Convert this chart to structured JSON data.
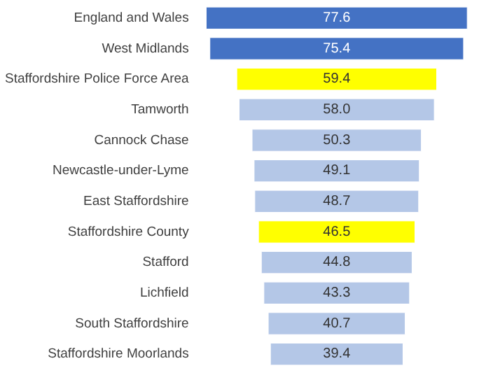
{
  "chart_data": {
    "type": "other",
    "categories": [
      "England and Wales",
      "West Midlands",
      "Staffordshire Police Force Area",
      "Tamworth",
      "Cannock Chase",
      "Newcastle-under-Lyme",
      "East Staffordshire",
      "Staffordshire County",
      "Stafford",
      "Lichfield",
      "South Staffordshire",
      "Staffordshire Moorlands"
    ],
    "values": [
      77.6,
      75.4,
      59.4,
      58.0,
      50.3,
      49.1,
      48.7,
      46.5,
      44.8,
      43.3,
      40.7,
      39.4
    ],
    "value_labels": [
      "77.6",
      "75.4",
      "59.4",
      "58.0",
      "50.3",
      "49.1",
      "48.7",
      "46.5",
      "44.8",
      "43.3",
      "40.7",
      "39.4"
    ],
    "colors": [
      "#4472c4",
      "#4472c4",
      "#ffff00",
      "#b4c7e7",
      "#b4c7e7",
      "#b4c7e7",
      "#b4c7e7",
      "#ffff00",
      "#b4c7e7",
      "#b4c7e7",
      "#b4c7e7",
      "#b4c7e7"
    ]
  }
}
